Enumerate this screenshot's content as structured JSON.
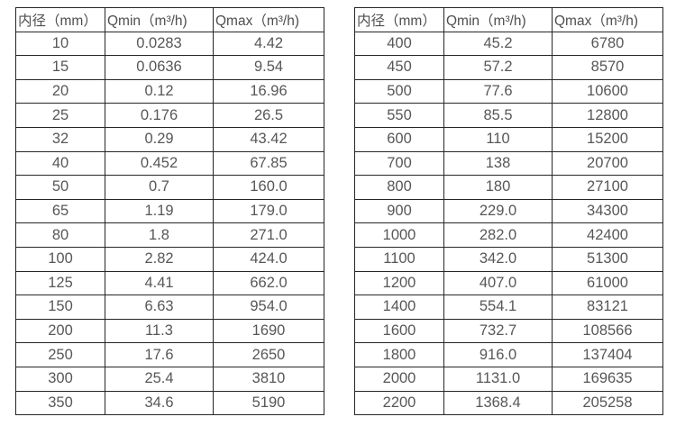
{
  "page": {
    "background_color": "#ffffff",
    "border_color": "#262626",
    "text_color": "#57575a",
    "header_text_color": "#4f4f52"
  },
  "tables": [
    {
      "name": "flow-table-small-diameters",
      "headers": [
        "内径（mm）",
        "Qmin（m³/h)",
        "Qmax（m³/h)"
      ],
      "rows": [
        [
          "10",
          "0.0283",
          "4.42"
        ],
        [
          "15",
          "0.0636",
          "9.54"
        ],
        [
          "20",
          "0.12",
          "16.96"
        ],
        [
          "25",
          "0.176",
          "26.5"
        ],
        [
          "32",
          "0.29",
          "43.42"
        ],
        [
          "40",
          "0.452",
          "67.85"
        ],
        [
          "50",
          "0.7",
          "160.0"
        ],
        [
          "65",
          "1.19",
          "179.0"
        ],
        [
          "80",
          "1.8",
          "271.0"
        ],
        [
          "100",
          "2.82",
          "424.0"
        ],
        [
          "125",
          "4.41",
          "662.0"
        ],
        [
          "150",
          "6.63",
          "954.0"
        ],
        [
          "200",
          "11.3",
          "1690"
        ],
        [
          "250",
          "17.6",
          "2650"
        ],
        [
          "300",
          "25.4",
          "3810"
        ],
        [
          "350",
          "34.6",
          "5190"
        ]
      ]
    },
    {
      "name": "flow-table-large-diameters",
      "headers": [
        "内径（mm）",
        "Qmin（m³/h)",
        "Qmax（m³/h)"
      ],
      "rows": [
        [
          "400",
          "45.2",
          "6780"
        ],
        [
          "450",
          "57.2",
          "8570"
        ],
        [
          "500",
          "77.6",
          "10600"
        ],
        [
          "550",
          "85.5",
          "12800"
        ],
        [
          "600",
          "110",
          "15200"
        ],
        [
          "700",
          "138",
          "20700"
        ],
        [
          "800",
          "180",
          "27100"
        ],
        [
          "900",
          "229.0",
          "34300"
        ],
        [
          "1000",
          "282.0",
          "42400"
        ],
        [
          "1100",
          "342.0",
          "51300"
        ],
        [
          "1200",
          "407.0",
          "61000"
        ],
        [
          "1400",
          "554.1",
          "83121"
        ],
        [
          "1600",
          "732.7",
          "108566"
        ],
        [
          "1800",
          "916.0",
          "137404"
        ],
        [
          "2000",
          "1131.0",
          "169635"
        ],
        [
          "2200",
          "1368.4",
          "205258"
        ]
      ]
    }
  ]
}
